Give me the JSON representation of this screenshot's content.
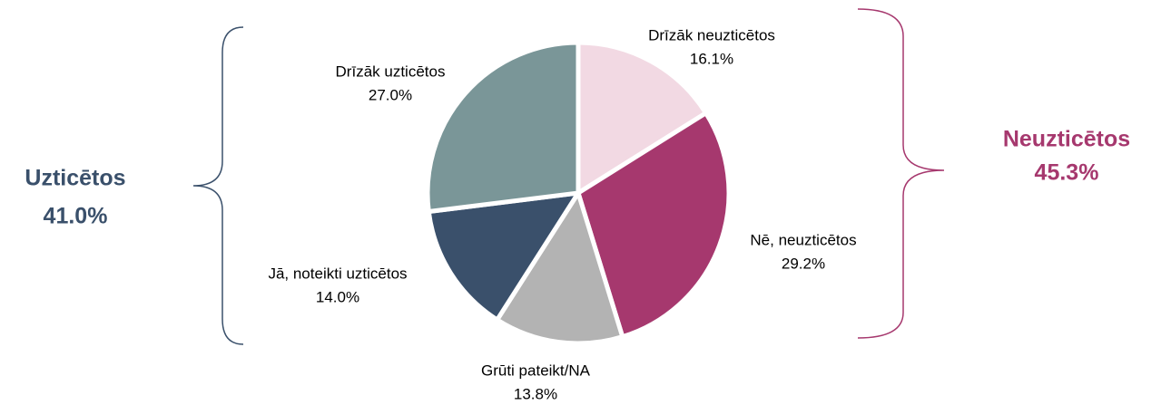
{
  "chart_data": {
    "type": "pie",
    "categories": [
      "Drīzāk neuzticētos",
      "Nē, neuzticētos",
      "Grūti pateikt/NA",
      "Jā, noteikti uzticētos",
      "Drīzāk uzticētos"
    ],
    "values": [
      16.1,
      29.2,
      13.8,
      14.0,
      27.0
    ],
    "value_labels": [
      "16.1%",
      "29.2%",
      "13.8%",
      "14.0%",
      "27.0%"
    ],
    "colors": [
      "#f2d9e3",
      "#a6386e",
      "#b3b3b3",
      "#3a506b",
      "#7a9698"
    ],
    "annotations": [
      {
        "label": "Uzticētos",
        "value_label": "41.0%",
        "color": "#3a506b"
      },
      {
        "label": "Neuzticētos",
        "value_label": "45.3%",
        "color": "#a6386e"
      }
    ]
  }
}
